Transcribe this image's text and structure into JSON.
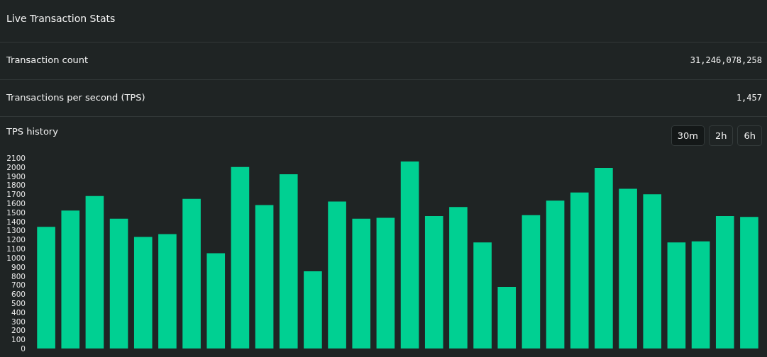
{
  "chart_data": {
    "type": "bar",
    "title": "Live Transaction Stats",
    "subtitle": "TPS history",
    "annotations": [
      "Transaction count",
      "31,246,078,258",
      "Transactions per second (TPS)",
      "1,457",
      "30m",
      "2h",
      "6h"
    ],
    "categories": [
      null,
      null,
      null,
      null,
      null,
      null,
      null,
      null,
      null,
      null,
      null,
      null,
      null,
      null,
      null,
      null,
      null,
      null,
      null,
      null,
      null,
      null,
      null,
      null,
      null,
      null,
      null,
      null,
      null,
      null
    ],
    "values": [
      1340,
      1520,
      1680,
      1430,
      1230,
      1260,
      1650,
      1050,
      2000,
      1580,
      1920,
      850,
      1620,
      1430,
      1440,
      2060,
      1460,
      1560,
      1170,
      680,
      1470,
      1630,
      1720,
      1990,
      1760,
      1700,
      1170,
      1180,
      1460,
      1450
    ],
    "color": "#00d092",
    "ylim": [
      0,
      2100
    ],
    "yticks": [
      0,
      100,
      200,
      300,
      400,
      500,
      600,
      700,
      800,
      900,
      1000,
      1100,
      1200,
      1300,
      1400,
      1500,
      1600,
      1700,
      1800,
      1900,
      2000,
      2100
    ],
    "grid": false
  }
}
